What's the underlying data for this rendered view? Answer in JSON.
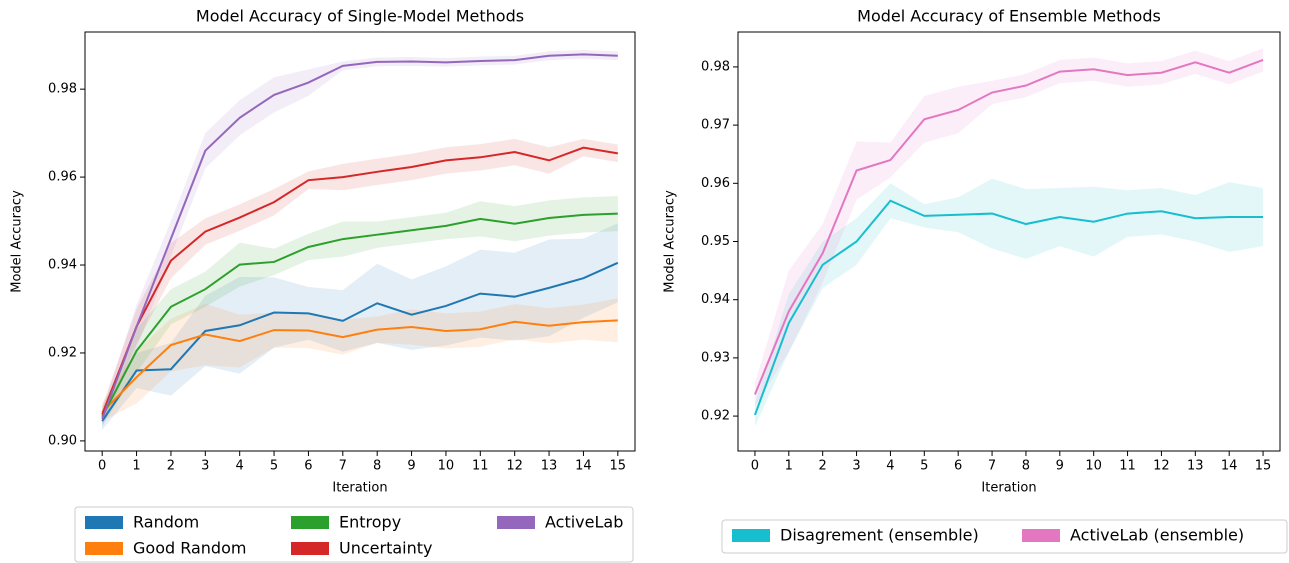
{
  "chart_data": [
    {
      "type": "line",
      "title": "Model Accuracy of Single-Model Methods",
      "xlabel": "Iteration",
      "ylabel": "Model Accuracy",
      "x": [
        0,
        1,
        2,
        3,
        4,
        5,
        6,
        7,
        8,
        9,
        10,
        11,
        12,
        13,
        14,
        15
      ],
      "xlim": [
        -0.5,
        15.5
      ],
      "xticks": [
        0,
        1,
        2,
        3,
        4,
        5,
        6,
        7,
        8,
        9,
        10,
        11,
        12,
        13,
        14,
        15
      ],
      "ylim": [
        0.8977,
        0.993
      ],
      "yticks": [
        {
          "value": 0.9,
          "label": "0.90"
        },
        0.92,
        0.94,
        0.96,
        0.98
      ],
      "series": [
        {
          "name": "Random",
          "color": "#1f77b4",
          "values": [
            0.9045,
            0.916,
            0.9163,
            0.925,
            0.9263,
            0.9292,
            0.929,
            0.9273,
            0.9313,
            0.9287,
            0.9307,
            0.9335,
            0.9328,
            0.9348,
            0.937,
            0.9405
          ],
          "errors": [
            0.002,
            0.004,
            0.006,
            0.008,
            0.011,
            0.008,
            0.006,
            0.007,
            0.009,
            0.008,
            0.009,
            0.01,
            0.01,
            0.011,
            0.009,
            0.009
          ]
        },
        {
          "name": "Good Random",
          "color": "#ff7f0e",
          "values": [
            0.9065,
            0.9145,
            0.9218,
            0.9242,
            0.9227,
            0.9252,
            0.9251,
            0.9236,
            0.9253,
            0.9259,
            0.925,
            0.9254,
            0.9271,
            0.9262,
            0.927,
            0.9274
          ],
          "errors": [
            0.002,
            0.006,
            0.006,
            0.007,
            0.006,
            0.004,
            0.004,
            0.004,
            0.003,
            0.004,
            0.004,
            0.004,
            0.004,
            0.004,
            0.004,
            0.005
          ]
        },
        {
          "name": "Entropy",
          "color": "#2ca02c",
          "values": [
            0.9055,
            0.9205,
            0.9305,
            0.9345,
            0.9401,
            0.9407,
            0.9441,
            0.9459,
            0.9469,
            0.9479,
            0.9489,
            0.9505,
            0.9494,
            0.9507,
            0.9514,
            0.9517
          ],
          "errors": [
            0.002,
            0.005,
            0.004,
            0.004,
            0.005,
            0.003,
            0.003,
            0.004,
            0.003,
            0.003,
            0.003,
            0.004,
            0.004,
            0.004,
            0.004,
            0.004
          ]
        },
        {
          "name": "Uncertainty",
          "color": "#d62728",
          "values": [
            0.906,
            0.926,
            0.941,
            0.9476,
            0.9508,
            0.9543,
            0.9593,
            0.96,
            0.9612,
            0.9623,
            0.9638,
            0.9645,
            0.9657,
            0.9638,
            0.9667,
            0.9654
          ],
          "errors": [
            0.002,
            0.004,
            0.004,
            0.003,
            0.003,
            0.003,
            0.002,
            0.003,
            0.003,
            0.003,
            0.003,
            0.003,
            0.003,
            0.003,
            0.002,
            0.002
          ]
        },
        {
          "name": "ActiveLab",
          "color": "#9467bd",
          "values": [
            0.905,
            0.926,
            0.946,
            0.966,
            0.9735,
            0.9787,
            0.9815,
            0.9853,
            0.9862,
            0.9863,
            0.9861,
            0.9864,
            0.9866,
            0.9876,
            0.9879,
            0.9876
          ],
          "errors": [
            0.002,
            0.005,
            0.004,
            0.004,
            0.004,
            0.004,
            0.003,
            0.001,
            0.001,
            0.001,
            0.001,
            0.001,
            0.001,
            0.001,
            0.001,
            0.001
          ]
        }
      ]
    },
    {
      "type": "line",
      "title": "Model Accuracy of Ensemble Methods",
      "xlabel": "Iteration",
      "ylabel": "Model Accuracy",
      "x": [
        0,
        1,
        2,
        3,
        4,
        5,
        6,
        7,
        8,
        9,
        10,
        11,
        12,
        13,
        14,
        15
      ],
      "xlim": [
        -0.5,
        15.5
      ],
      "xticks": [
        0,
        1,
        2,
        3,
        4,
        5,
        6,
        7,
        8,
        9,
        10,
        11,
        12,
        13,
        14,
        15
      ],
      "ylim": [
        0.914,
        0.986
      ],
      "yticks": [
        0.92,
        0.93,
        0.94,
        0.95,
        0.96,
        0.97,
        0.98
      ],
      "series": [
        {
          "name": "Disagrement (ensemble)",
          "color": "#17becf",
          "values": [
            0.9202,
            0.936,
            0.946,
            0.95,
            0.957,
            0.9544,
            0.9546,
            0.9548,
            0.953,
            0.9542,
            0.9534,
            0.9548,
            0.9552,
            0.954,
            0.9542,
            0.9542
          ],
          "errors": [
            0.002,
            0.005,
            0.004,
            0.004,
            0.003,
            0.002,
            0.003,
            0.006,
            0.006,
            0.005,
            0.006,
            0.004,
            0.004,
            0.004,
            0.006,
            0.005
          ]
        },
        {
          "name": "ActiveLab (ensemble)",
          "color": "#e377c2",
          "values": [
            0.9237,
            0.938,
            0.948,
            0.9622,
            0.964,
            0.971,
            0.9726,
            0.9756,
            0.9768,
            0.9792,
            0.9796,
            0.9786,
            0.979,
            0.9808,
            0.979,
            0.9812
          ],
          "errors": [
            0.002,
            0.007,
            0.005,
            0.005,
            0.003,
            0.004,
            0.004,
            0.002,
            0.002,
            0.002,
            0.002,
            0.002,
            0.002,
            0.002,
            0.002,
            0.002
          ]
        }
      ]
    }
  ]
}
